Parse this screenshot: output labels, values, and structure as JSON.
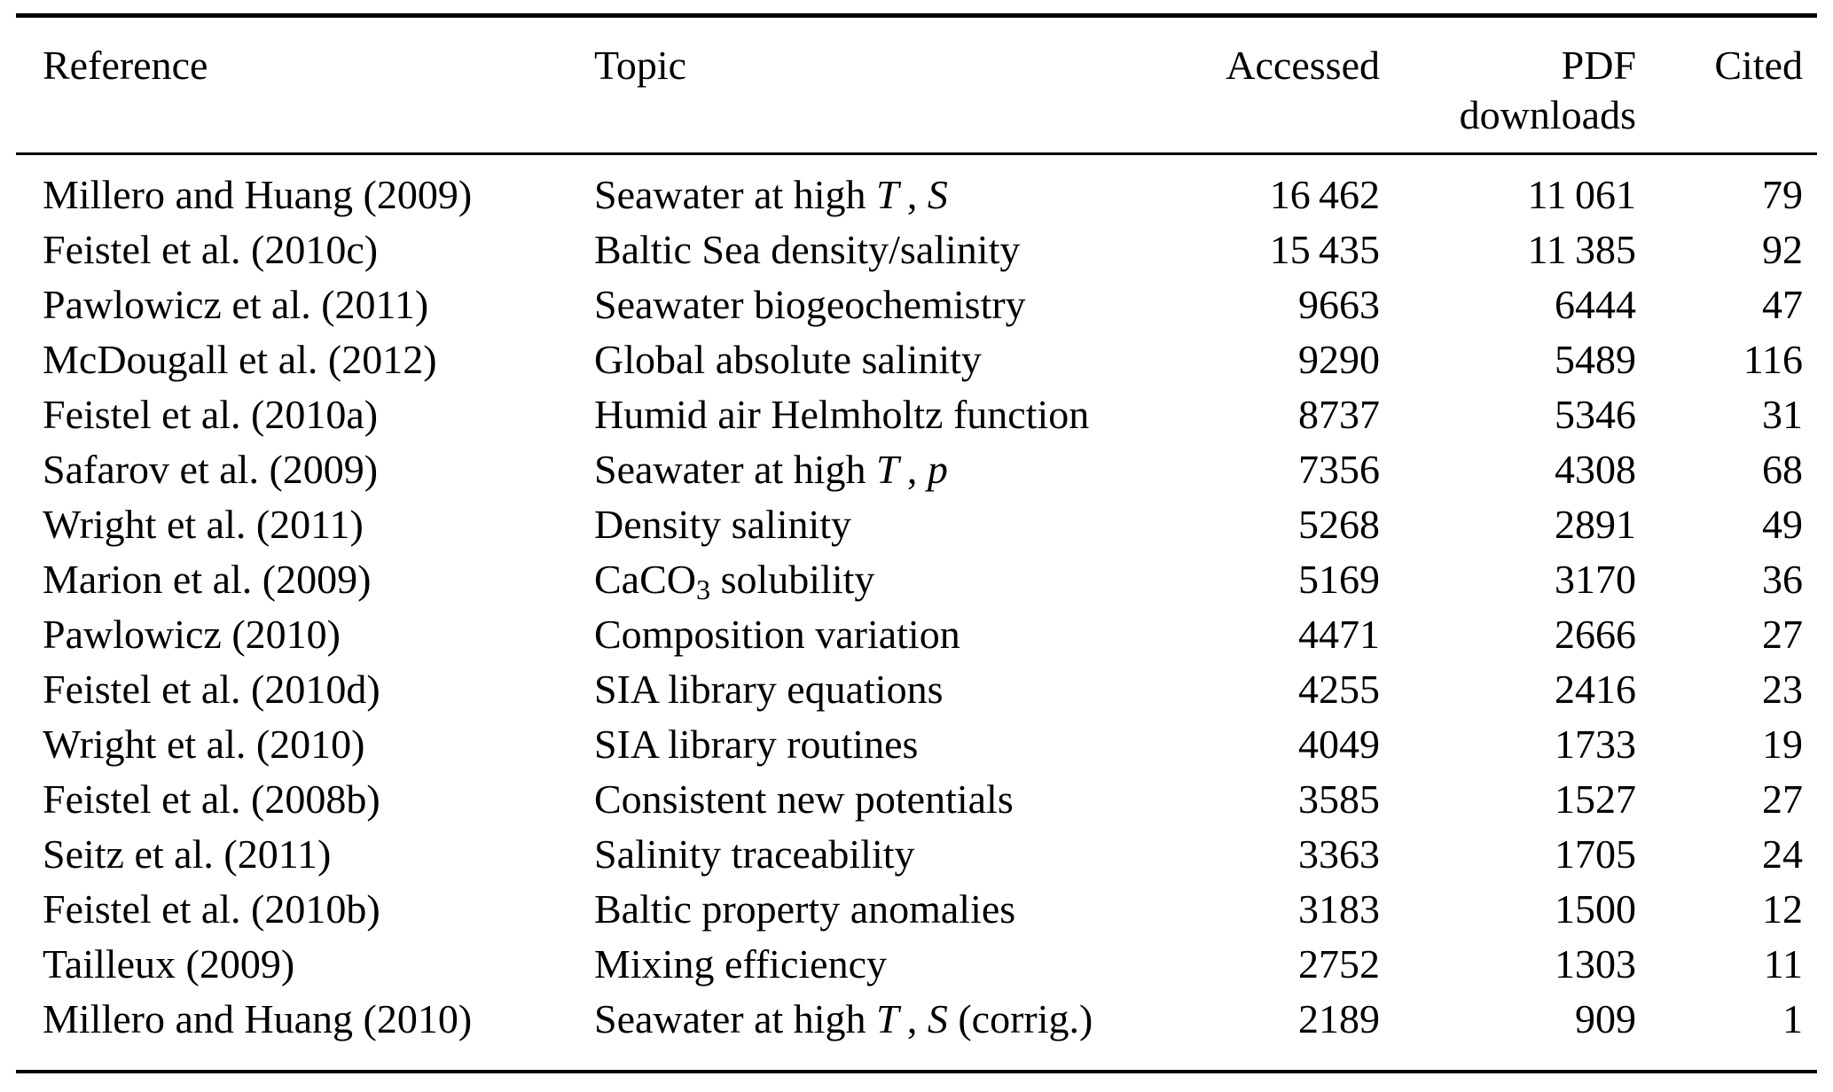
{
  "table": {
    "headers": {
      "reference": "Reference",
      "topic": "Topic",
      "accessed": "Accessed",
      "pdf_line1": "PDF",
      "pdf_line2": "downloads",
      "cited": "Cited"
    },
    "rows": [
      {
        "reference": "Millero and Huang (2009)",
        "topic": [
          {
            "t": "Seawater at high "
          },
          {
            "t": "T",
            "i": true
          },
          {
            "t": " , "
          },
          {
            "t": "S",
            "i": true
          }
        ],
        "accessed": "16 462",
        "pdf": "11 061",
        "cited": "79"
      },
      {
        "reference": "Feistel et al. (2010c)",
        "topic": [
          {
            "t": "Baltic Sea density/salinity"
          }
        ],
        "accessed": "15 435",
        "pdf": "11 385",
        "cited": "92"
      },
      {
        "reference": "Pawlowicz et al. (2011)",
        "topic": [
          {
            "t": "Seawater biogeochemistry"
          }
        ],
        "accessed": "9663",
        "pdf": "6444",
        "cited": "47"
      },
      {
        "reference": "McDougall et al. (2012)",
        "topic": [
          {
            "t": "Global absolute salinity"
          }
        ],
        "accessed": "9290",
        "pdf": "5489",
        "cited": "116"
      },
      {
        "reference": "Feistel et al. (2010a)",
        "topic": [
          {
            "t": "Humid air Helmholtz function"
          }
        ],
        "accessed": "8737",
        "pdf": "5346",
        "cited": "31"
      },
      {
        "reference": "Safarov et al. (2009)",
        "topic": [
          {
            "t": "Seawater at high "
          },
          {
            "t": "T",
            "i": true
          },
          {
            "t": " , "
          },
          {
            "t": "p",
            "i": true
          }
        ],
        "accessed": "7356",
        "pdf": "4308",
        "cited": "68"
      },
      {
        "reference": "Wright et al. (2011)",
        "topic": [
          {
            "t": "Density salinity"
          }
        ],
        "accessed": "5268",
        "pdf": "2891",
        "cited": "49"
      },
      {
        "reference": "Marion et al. (2009)",
        "topic": [
          {
            "t": "CaCO"
          },
          {
            "t": "3",
            "sub": true
          },
          {
            "t": " solubility"
          }
        ],
        "accessed": "5169",
        "pdf": "3170",
        "cited": "36"
      },
      {
        "reference": "Pawlowicz (2010)",
        "topic": [
          {
            "t": "Composition variation"
          }
        ],
        "accessed": "4471",
        "pdf": "2666",
        "cited": "27"
      },
      {
        "reference": "Feistel et al. (2010d)",
        "topic": [
          {
            "t": "SIA library equations"
          }
        ],
        "accessed": "4255",
        "pdf": "2416",
        "cited": "23"
      },
      {
        "reference": "Wright et al. (2010)",
        "topic": [
          {
            "t": "SIA library routines"
          }
        ],
        "accessed": "4049",
        "pdf": "1733",
        "cited": "19"
      },
      {
        "reference": "Feistel et al. (2008b)",
        "topic": [
          {
            "t": "Consistent new potentials"
          }
        ],
        "accessed": "3585",
        "pdf": "1527",
        "cited": "27"
      },
      {
        "reference": "Seitz et al. (2011)",
        "topic": [
          {
            "t": "Salinity traceability"
          }
        ],
        "accessed": "3363",
        "pdf": "1705",
        "cited": "24"
      },
      {
        "reference": "Feistel et al. (2010b)",
        "topic": [
          {
            "t": "Baltic property anomalies"
          }
        ],
        "accessed": "3183",
        "pdf": "1500",
        "cited": "12"
      },
      {
        "reference": "Tailleux (2009)",
        "topic": [
          {
            "t": "Mixing efficiency"
          }
        ],
        "accessed": "2752",
        "pdf": "1303",
        "cited": "11"
      },
      {
        "reference": "Millero and Huang (2010)",
        "topic": [
          {
            "t": "Seawater at high "
          },
          {
            "t": "T",
            "i": true
          },
          {
            "t": " , "
          },
          {
            "t": "S",
            "i": true
          },
          {
            "t": " (corrig.)"
          }
        ],
        "accessed": "2189",
        "pdf": "909",
        "cited": "1"
      }
    ]
  }
}
